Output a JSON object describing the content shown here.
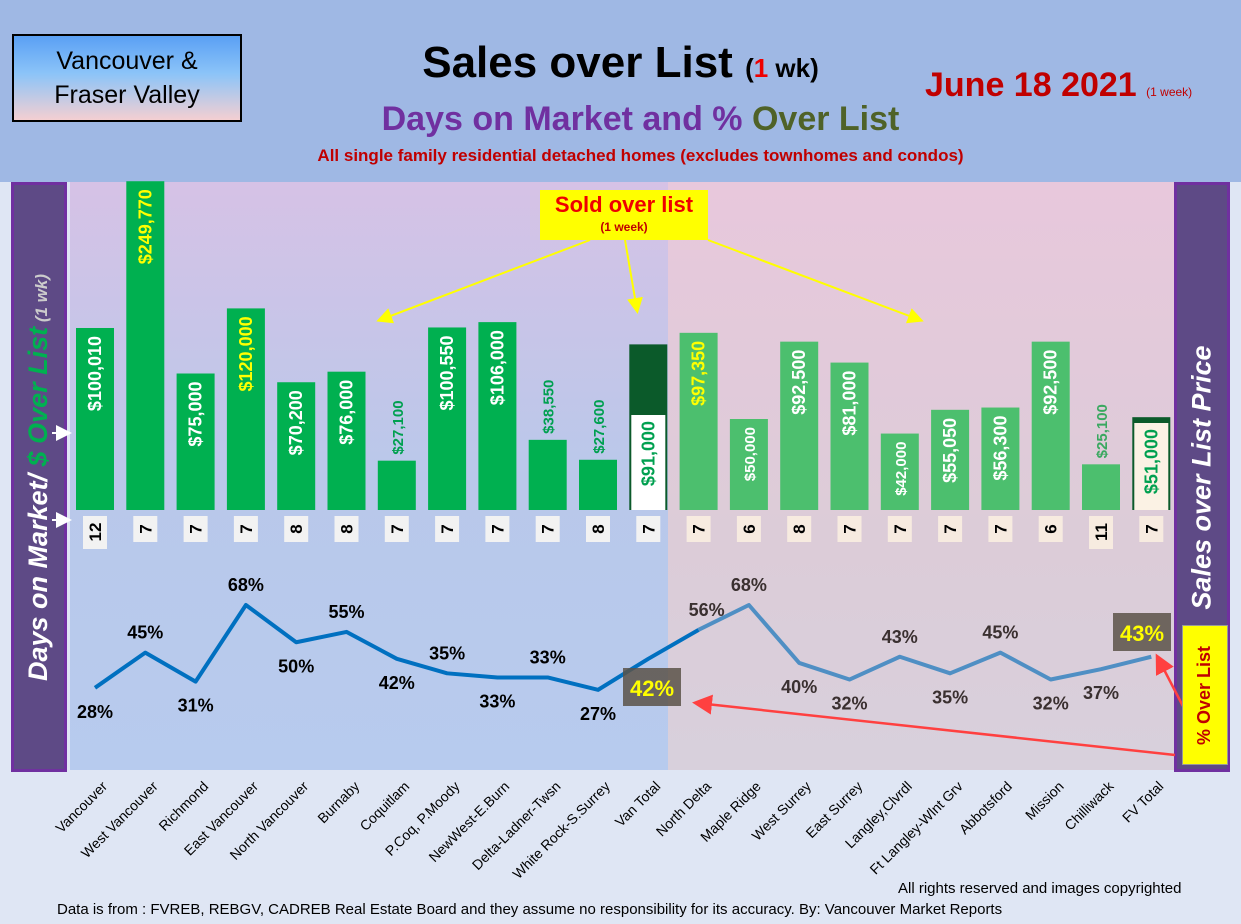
{
  "header": {
    "logo_line1": "Vancouver &",
    "logo_line2": "Fraser Valley",
    "title": "Sales over List",
    "title_paren_open": "(",
    "title_num": "1",
    "title_rest": " wk)",
    "date": "June 18  2021",
    "date_note": "(1 week)",
    "subtitle_a": "Days on Market and % ",
    "subtitle_b": "Over List",
    "description": "All single family residential detached homes (excludes townhomes and condos)"
  },
  "left_panel": {
    "a": "Days on Market/ ",
    "b": "$ Over List",
    "c": " (1 wk)"
  },
  "right_panel": "Sales over List Price",
  "pct_box": "% Over List",
  "sold_box": {
    "line1": "Sold over list",
    "line2": "(1 week)"
  },
  "footer": {
    "rights": "All rights reserved and  images copyrighted",
    "source": "Data is from : FVREB, REBGV, CADREB Real Estate Board and they assume no responsibility for its accuracy. By: Vancouver Market Reports"
  },
  "colors": {
    "van_bar": "#00b050",
    "fv_bar": "#4cbf6e",
    "total_dark": "#0b5a2a",
    "line_van": "#0070c0",
    "line_fv": "#4f8fc4"
  },
  "chart_data": {
    "type": "bar+line",
    "title": "Sales over List (1 wk)",
    "categories": [
      "Vancouver",
      "West Vancouver",
      "Richmond",
      "East Vancouver",
      "North Vancouver",
      "Burnaby",
      "Coquitlam",
      "P.Coq, P.Moody",
      "NewWest-E.Burn",
      "Delta-Ladner-Twsn",
      "White Rock-S.Surrey",
      "Van Total",
      "North Delta",
      "Maple Ridge",
      "West Surrey",
      "East Surrey",
      "Langley,Clvrdl",
      "Ft Langley-Wlnt Grv",
      "Abbotsford",
      "Mission",
      "Chilliwack",
      "FV Total"
    ],
    "series": [
      {
        "name": "$ Over List",
        "type": "bar",
        "values": [
          100010,
          249770,
          75000,
          120000,
          70200,
          76000,
          27100,
          100550,
          106000,
          38550,
          27600,
          91000,
          97350,
          50000,
          92500,
          81000,
          42000,
          55050,
          56300,
          92500,
          25100,
          51000
        ],
        "labels": [
          "$100,010",
          "$249,770",
          "$75,000",
          "$120,000",
          "$70,200",
          "$76,000",
          "$27,100",
          "$100,550",
          "$106,000",
          "$38,550",
          "$27,600",
          "$91,000",
          "$97,350",
          "$50,000",
          "$92,500",
          "$81,000",
          "$42,000",
          "$55,050",
          "$56,300",
          "$92,500",
          "$25,100",
          "$51,000"
        ]
      },
      {
        "name": "Days on Market",
        "type": "label",
        "values": [
          12,
          7,
          7,
          7,
          8,
          8,
          7,
          7,
          7,
          7,
          8,
          7,
          7,
          6,
          8,
          7,
          7,
          7,
          7,
          6,
          11,
          7
        ]
      },
      {
        "name": "% Over List",
        "type": "line",
        "values": [
          28,
          45,
          31,
          68,
          50,
          55,
          42,
          35,
          33,
          33,
          27,
          42,
          56,
          68,
          40,
          32,
          43,
          35,
          45,
          32,
          37,
          43
        ],
        "labels": [
          "28%",
          "45%",
          "31%",
          "68%",
          "50%",
          "55%",
          "42%",
          "35%",
          "33%",
          "33%",
          "27%",
          "42%",
          "56%",
          "68%",
          "40%",
          "32%",
          "43%",
          "35%",
          "45%",
          "32%",
          "37%",
          "43%"
        ]
      }
    ],
    "groups": [
      {
        "name": "Vancouver",
        "range": [
          0,
          11
        ]
      },
      {
        "name": "Fraser Valley",
        "range": [
          12,
          21
        ]
      }
    ]
  }
}
